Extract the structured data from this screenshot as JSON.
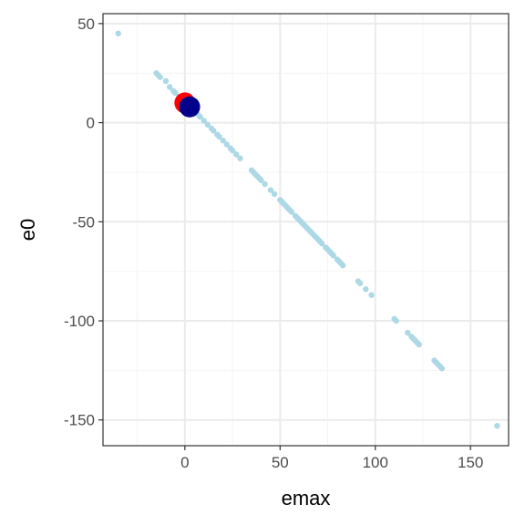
{
  "chart_data": {
    "type": "scatter",
    "xlabel": "emax",
    "ylabel": "e0",
    "xlim": [
      -43,
      170
    ],
    "ylim": [
      -163,
      55
    ],
    "x_ticks": [
      0,
      50,
      100,
      150
    ],
    "x_tick_labels": [
      "0",
      "50",
      "100",
      "150"
    ],
    "y_ticks": [
      50,
      0,
      -50,
      -100,
      -150
    ],
    "y_tick_labels": [
      "50",
      "0",
      "-50",
      "-100",
      "-150"
    ],
    "grid": true,
    "colors": {
      "points": "#add8e6",
      "highlight_red": "#ff0000",
      "highlight_blue": "#00008b",
      "panel_border": "#333333",
      "grid_major": "#ebebeb",
      "grid_minor": "#f4f4f4"
    },
    "series": [
      {
        "values": [
          {
            "x": -35,
            "y": 45
          },
          {
            "x": -15,
            "y": 25
          },
          {
            "x": -14,
            "y": 24
          },
          {
            "x": -13,
            "y": 23
          },
          {
            "x": -10,
            "y": 21
          },
          {
            "x": -8,
            "y": 18
          },
          {
            "x": -6,
            "y": 16
          },
          {
            "x": -5,
            "y": 15
          },
          {
            "x": -3,
            "y": 13
          },
          {
            "x": -2,
            "y": 12
          },
          {
            "x": 0,
            "y": 11
          },
          {
            "x": 1,
            "y": 9
          },
          {
            "x": 3,
            "y": 8
          },
          {
            "x": 5,
            "y": 6
          },
          {
            "x": 7,
            "y": 4
          },
          {
            "x": 8,
            "y": 3
          },
          {
            "x": 10,
            "y": 1
          },
          {
            "x": 12,
            "y": -1
          },
          {
            "x": 14,
            "y": -3
          },
          {
            "x": 15,
            "y": -4
          },
          {
            "x": 17,
            "y": -6
          },
          {
            "x": 18,
            "y": -7
          },
          {
            "x": 20,
            "y": -9
          },
          {
            "x": 22,
            "y": -11
          },
          {
            "x": 24,
            "y": -13
          },
          {
            "x": 25,
            "y": -14
          },
          {
            "x": 27,
            "y": -16
          },
          {
            "x": 29,
            "y": -18
          },
          {
            "x": 35,
            "y": -24
          },
          {
            "x": 36,
            "y": -25
          },
          {
            "x": 37,
            "y": -26
          },
          {
            "x": 38,
            "y": -27
          },
          {
            "x": 39,
            "y": -28
          },
          {
            "x": 40,
            "y": -29
          },
          {
            "x": 42,
            "y": -31
          },
          {
            "x": 45,
            "y": -34
          },
          {
            "x": 47,
            "y": -36
          },
          {
            "x": 50,
            "y": -39
          },
          {
            "x": 51,
            "y": -40
          },
          {
            "x": 52,
            "y": -41
          },
          {
            "x": 53,
            "y": -42
          },
          {
            "x": 54,
            "y": -43
          },
          {
            "x": 55,
            "y": -44
          },
          {
            "x": 56,
            "y": -45
          },
          {
            "x": 58,
            "y": -47
          },
          {
            "x": 59,
            "y": -48
          },
          {
            "x": 60,
            "y": -49
          },
          {
            "x": 61,
            "y": -50
          },
          {
            "x": 62,
            "y": -51
          },
          {
            "x": 63,
            "y": -52
          },
          {
            "x": 64,
            "y": -53
          },
          {
            "x": 65,
            "y": -54
          },
          {
            "x": 66,
            "y": -55
          },
          {
            "x": 67,
            "y": -56
          },
          {
            "x": 68,
            "y": -57
          },
          {
            "x": 69,
            "y": -58
          },
          {
            "x": 70,
            "y": -59
          },
          {
            "x": 71,
            "y": -60
          },
          {
            "x": 72,
            "y": -61
          },
          {
            "x": 74,
            "y": -63
          },
          {
            "x": 75,
            "y": -64
          },
          {
            "x": 76,
            "y": -65
          },
          {
            "x": 77,
            "y": -66
          },
          {
            "x": 78,
            "y": -67
          },
          {
            "x": 80,
            "y": -69
          },
          {
            "x": 81,
            "y": -70
          },
          {
            "x": 82,
            "y": -71
          },
          {
            "x": 83,
            "y": -72
          },
          {
            "x": 91,
            "y": -80
          },
          {
            "x": 92,
            "y": -81
          },
          {
            "x": 95,
            "y": -84
          },
          {
            "x": 98,
            "y": -87
          },
          {
            "x": 110,
            "y": -99
          },
          {
            "x": 111,
            "y": -100
          },
          {
            "x": 117,
            "y": -106
          },
          {
            "x": 119,
            "y": -108
          },
          {
            "x": 120,
            "y": -109
          },
          {
            "x": 121,
            "y": -110
          },
          {
            "x": 122,
            "y": -111
          },
          {
            "x": 123,
            "y": -112
          },
          {
            "x": 131,
            "y": -120
          },
          {
            "x": 132,
            "y": -121
          },
          {
            "x": 133,
            "y": -122
          },
          {
            "x": 134,
            "y": -123
          },
          {
            "x": 135,
            "y": -124
          },
          {
            "x": 164,
            "y": -153
          }
        ]
      },
      {
        "values": [
          {
            "x": 0,
            "y": 10
          }
        ]
      },
      {
        "values": [
          {
            "x": 2.5,
            "y": 8
          }
        ]
      }
    ]
  }
}
